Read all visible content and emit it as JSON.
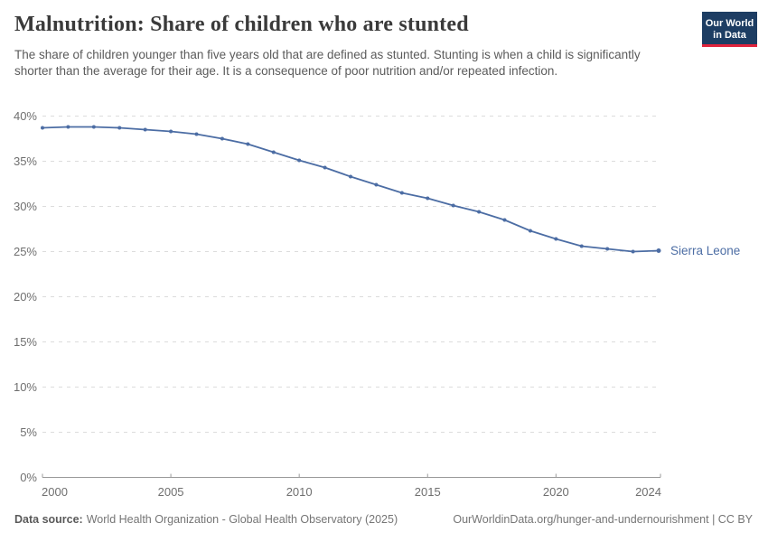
{
  "header": {
    "title": "Malnutrition: Share of children who are stunted",
    "subtitle": "The share of children younger than five years old that are defined as stunted. Stunting is when a child is significantly shorter than the average for their age. It is a consequence of poor nutrition and/or repeated infection.",
    "logo": {
      "line1": "Our World",
      "line2": "in Data"
    }
  },
  "chart_data": {
    "type": "line",
    "title": "Malnutrition: Share of children who are stunted",
    "x": [
      2000,
      2001,
      2002,
      2003,
      2004,
      2005,
      2006,
      2007,
      2008,
      2009,
      2010,
      2011,
      2012,
      2013,
      2014,
      2015,
      2016,
      2017,
      2018,
      2019,
      2020,
      2021,
      2022,
      2023,
      2024
    ],
    "series": [
      {
        "name": "Sierra Leone",
        "color": "#4c6da4",
        "values": [
          38.7,
          38.8,
          38.8,
          38.7,
          38.5,
          38.3,
          38.0,
          37.5,
          36.9,
          36.0,
          35.1,
          34.3,
          33.3,
          32.4,
          31.5,
          30.9,
          30.1,
          29.4,
          28.5,
          27.3,
          26.4,
          25.6,
          25.3,
          25.0,
          25.1
        ]
      }
    ],
    "x_ticks": [
      2000,
      2005,
      2010,
      2015,
      2020,
      2024
    ],
    "y_ticks": [
      0,
      5,
      10,
      15,
      20,
      25,
      30,
      35,
      40
    ],
    "y_unit": "%",
    "xlim": [
      2000,
      2024
    ],
    "ylim": [
      0,
      40
    ],
    "grid": "horizontal-dashed",
    "legend": "inline-entity-label"
  },
  "footer": {
    "datasource_label": "Data source:",
    "datasource_value": "World Health Organization - Global Health Observatory (2025)",
    "attribution": "OurWorldinData.org/hunger-and-undernourishment | CC BY"
  },
  "colors": {
    "line": "#4c6da4",
    "logo_bg": "#1d3d63",
    "logo_accent": "#e0233c",
    "grid": "#dcdcdc",
    "axis": "#9a9a9a",
    "tick_label": "#6f6f6f"
  }
}
